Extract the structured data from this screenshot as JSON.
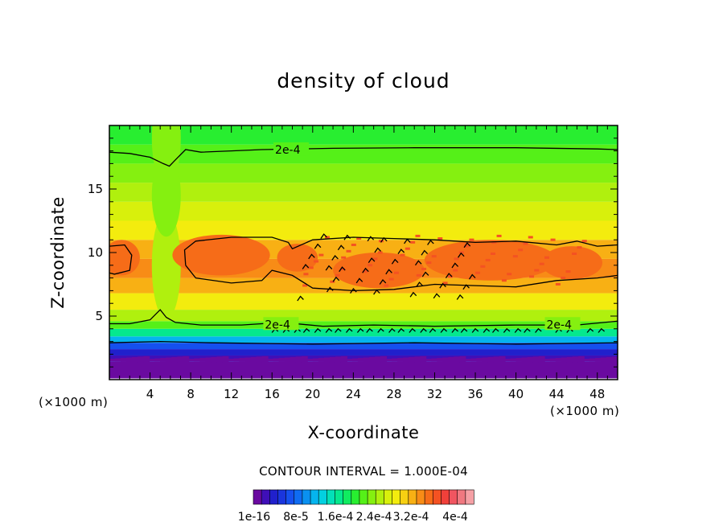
{
  "chart_data": {
    "type": "heatmap",
    "title": "density of cloud",
    "xlabel": "X-coordinate",
    "ylabel": "Z-coordinate",
    "x_unit_left": "(×1000 m)",
    "x_unit_right": "(×1000 m)",
    "xlim": [
      0,
      50
    ],
    "ylim": [
      0,
      20
    ],
    "x_ticks": [
      4,
      8,
      12,
      16,
      20,
      24,
      28,
      32,
      36,
      40,
      44,
      48
    ],
    "y_ticks": [
      5,
      10,
      15
    ],
    "contour_interval_label": "CONTOUR INTERVAL = 1.000E-04",
    "contour_level": "2e-4",
    "contour_labels": [
      {
        "text": "2e-4",
        "x": 16.3,
        "y": 18.1
      },
      {
        "text": "2e-4",
        "x": 15.3,
        "y": 4.35
      },
      {
        "text": "2e-4",
        "x": 43.0,
        "y": 4.35
      }
    ],
    "colorbar": {
      "min": 1e-16,
      "max": 0.0004,
      "labels": [
        "1e-16",
        "8e-5",
        "1.6e-4",
        "2.4e-4",
        "3.2e-4",
        "4e-4"
      ],
      "colors": [
        "#6a0aa0",
        "#3f0fb8",
        "#2020cc",
        "#1a35dd",
        "#1550ee",
        "#0f6cf2",
        "#0a90f0",
        "#05b4ee",
        "#03d0e0",
        "#03e0b8",
        "#05e88e",
        "#10ec60",
        "#28ee30",
        "#55f018",
        "#85f010",
        "#b0f00e",
        "#d8f00c",
        "#f3ec0e",
        "#f7d012",
        "#f8b014",
        "#f88c16",
        "#f66c18",
        "#f45222",
        "#f0403a",
        "#f05560",
        "#f07880",
        "#f5a0a5"
      ]
    },
    "bands": [
      {
        "z": 0.1,
        "value": 0
      },
      {
        "z": 1.4,
        "value": 5e-06
      },
      {
        "z": 1.9,
        "value": 1.5e-05
      },
      {
        "z": 2.4,
        "value": 4e-05
      },
      {
        "z": 2.9,
        "value": 7e-05
      },
      {
        "z": 3.4,
        "value": 0.00011
      },
      {
        "z": 4.0,
        "value": 0.00016
      },
      {
        "z": 4.6,
        "value": 0.000205
      },
      {
        "z": 5.5,
        "value": 0.000235
      },
      {
        "z": 6.8,
        "value": 0.00026
      },
      {
        "z": 8.0,
        "value": 0.00029
      },
      {
        "z": 9.5,
        "value": 0.000305
      },
      {
        "z": 11.0,
        "value": 0.000285
      },
      {
        "z": 12.5,
        "value": 0.00026
      },
      {
        "z": 14.0,
        "value": 0.00024
      },
      {
        "z": 15.5,
        "value": 0.000225
      },
      {
        "z": 17.0,
        "value": 0.000212
      },
      {
        "z": 18.5,
        "value": 0.0002
      },
      {
        "z": 20.0,
        "value": 0.000192
      }
    ]
  }
}
